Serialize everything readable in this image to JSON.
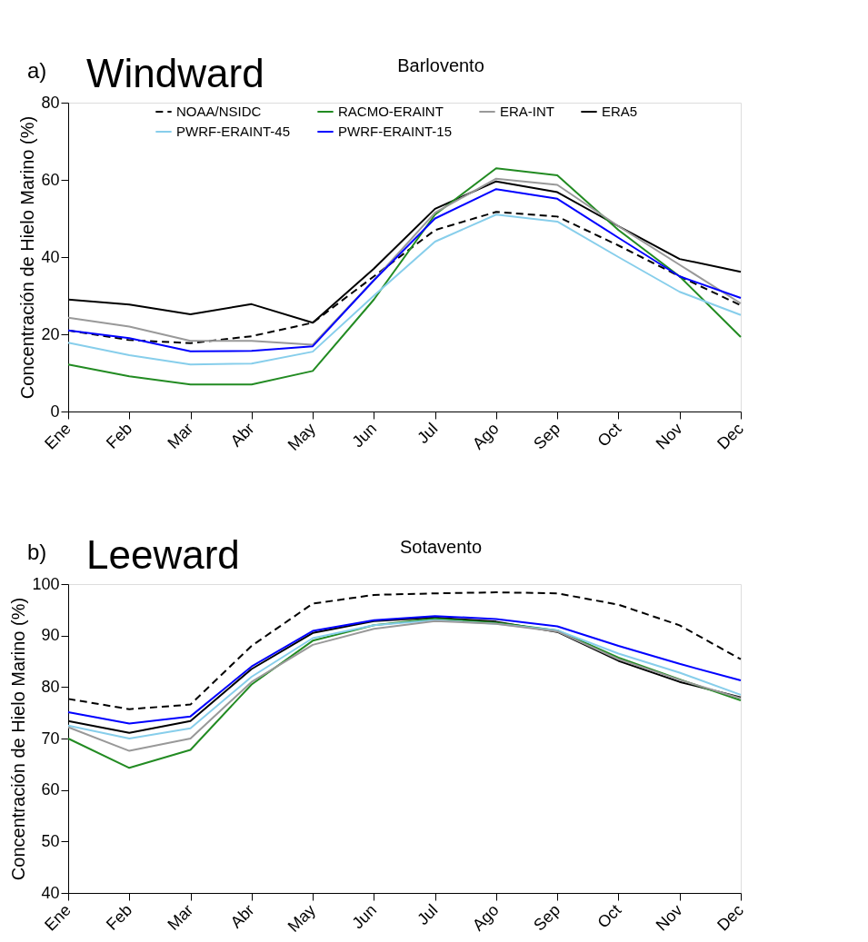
{
  "chart_data": [
    {
      "type": "line",
      "title": "Windward",
      "subtitle": "Barlovento",
      "annotations": [
        "a)"
      ],
      "ylabel": "Concentración de Hielo Marino (%)",
      "categories": [
        "Ene",
        "Feb",
        "Mar",
        "Abr",
        "May",
        "Jun",
        "Jul",
        "Ago",
        "Sep",
        "Oct",
        "Nov",
        "Dec"
      ],
      "ylim": [
        0,
        80
      ],
      "yticks": [
        0,
        20,
        40,
        60,
        80
      ],
      "grid": false,
      "legend": "top",
      "line_style": "solid",
      "marker": "none",
      "series": [
        {
          "name": "NOAA/NSIDC",
          "color": "#000000",
          "line_style": "dashed",
          "values": [
            21,
            18.5,
            17.7,
            19.5,
            23,
            35,
            47,
            51.7,
            50.5,
            43,
            35,
            27.5
          ]
        },
        {
          "name": "ERA5",
          "color": "#000000",
          "values": [
            29,
            27.7,
            25.2,
            27.8,
            23,
            37,
            52.5,
            59.6,
            56.8,
            48,
            39.5,
            36.2
          ]
        },
        {
          "name": "RACMO-ERAINT",
          "color": "#228b22",
          "values": [
            12.2,
            9.1,
            7,
            7,
            10.5,
            29,
            51,
            63,
            61.2,
            47,
            35,
            19.3
          ]
        },
        {
          "name": "PWRF-ERAINT-45",
          "color": "#87ceeb",
          "values": [
            17.8,
            14.6,
            12.2,
            12.4,
            15.5,
            30,
            44,
            51,
            49.2,
            40,
            31,
            25
          ]
        },
        {
          "name": "ERA-INT",
          "color": "#999999",
          "values": [
            24.3,
            22,
            18.3,
            18.3,
            17.3,
            34,
            51.5,
            60.3,
            58.7,
            48,
            38,
            28
          ]
        },
        {
          "name": "PWRF-ERAINT-15",
          "color": "#0000ff",
          "values": [
            21,
            19,
            15.6,
            15.7,
            16.9,
            34,
            50,
            57.6,
            55.1,
            45,
            35,
            29.4
          ]
        }
      ]
    },
    {
      "type": "line",
      "title": "Leeward",
      "subtitle": "Sotavento",
      "annotations": [
        "b)"
      ],
      "ylabel": "Concentración de Hielo Marino (%)",
      "categories": [
        "Ene",
        "Feb",
        "Mar",
        "Abr",
        "May",
        "Jun",
        "Jul",
        "Ago",
        "Sep",
        "Oct",
        "Nov",
        "Dec"
      ],
      "ylim": [
        40,
        100
      ],
      "yticks": [
        40,
        50,
        60,
        70,
        80,
        90,
        100
      ],
      "grid": false,
      "line_style": "solid",
      "marker": "none",
      "series": [
        {
          "color": "#000000",
          "line_style": "dashed",
          "values": [
            77.7,
            75.7,
            76.6,
            88,
            96.2,
            97.9,
            98.2,
            98.4,
            98.2,
            96,
            92,
            85.4
          ]
        },
        {
          "color": "#000000",
          "values": [
            73.4,
            71.1,
            73.4,
            83.5,
            90.5,
            92.8,
            93.5,
            92.7,
            90.7,
            85.1,
            81,
            78
          ]
        },
        {
          "color": "#228b22",
          "values": [
            70,
            64.3,
            67.8,
            80.5,
            89,
            92,
            93.3,
            92.5,
            91,
            85.7,
            81.5,
            77.4
          ]
        },
        {
          "color": "#87ceeb",
          "values": [
            72.5,
            70,
            72,
            82,
            89.5,
            92,
            93,
            92.3,
            91,
            86.5,
            82.8,
            78.5
          ]
        },
        {
          "color": "#999999",
          "values": [
            72.2,
            67.6,
            70,
            81,
            88.2,
            91.3,
            92.8,
            92.3,
            90.8,
            85.4,
            81.4,
            77.8
          ]
        },
        {
          "color": "#0000ff",
          "values": [
            75.1,
            72.9,
            74.3,
            84,
            90.9,
            93,
            93.8,
            93.2,
            91.8,
            88,
            84.5,
            81.3
          ]
        }
      ]
    }
  ]
}
